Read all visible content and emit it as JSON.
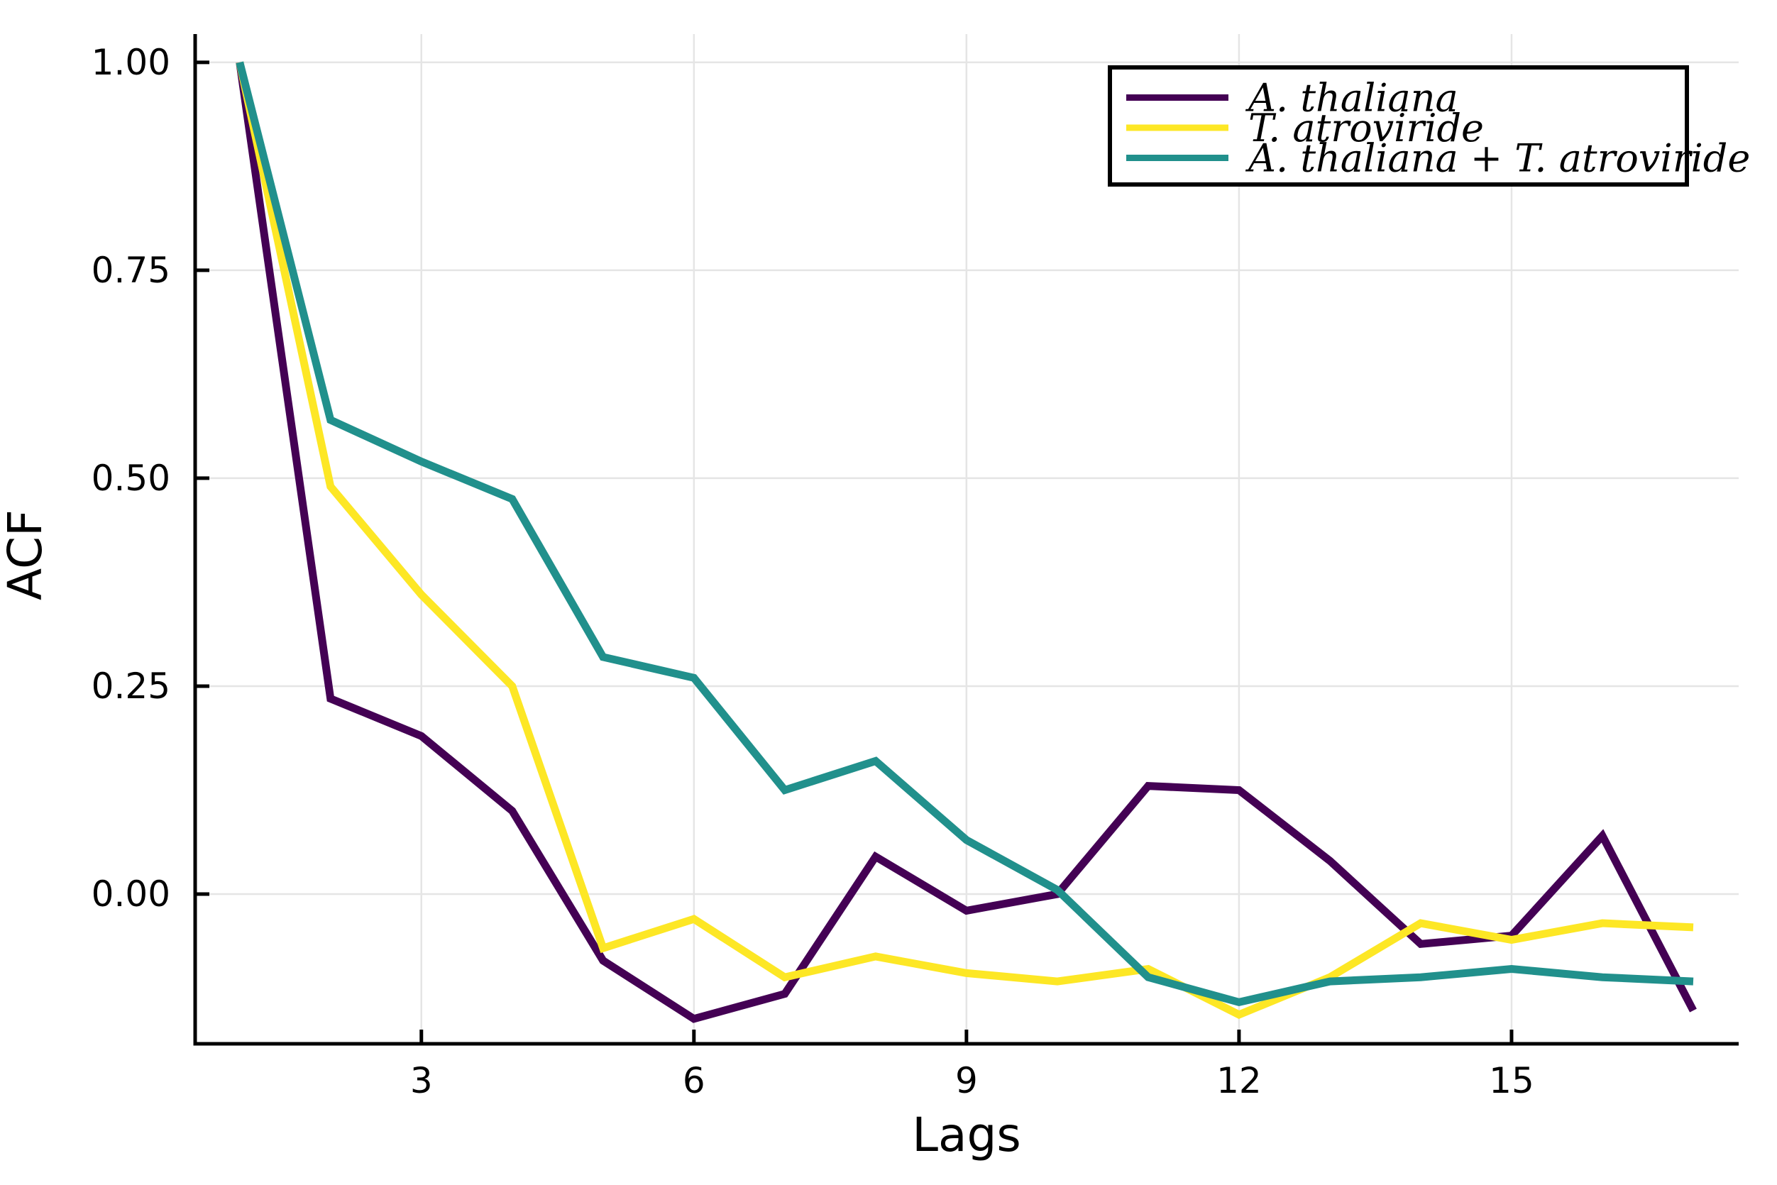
{
  "chart_data": {
    "type": "line",
    "title": "",
    "xlabel": "Lags",
    "ylabel": "ACF",
    "x": [
      1,
      2,
      3,
      4,
      5,
      6,
      7,
      8,
      9,
      10,
      11,
      12,
      13,
      14,
      15,
      16,
      17
    ],
    "xtick_values": [
      3,
      6,
      9,
      12,
      15
    ],
    "xtick_labels": [
      "3",
      "6",
      "9",
      "12",
      "15"
    ],
    "ytick_values": [
      0.0,
      0.25,
      0.5,
      0.75,
      1.0
    ],
    "ytick_labels": [
      "0.00",
      "0.25",
      "0.50",
      "0.75",
      "1.00"
    ],
    "xlim": [
      0.51,
      17.5
    ],
    "ylim": [
      -0.18,
      1.034
    ],
    "grid": true,
    "grid_color": "#e5e5e5",
    "axis_color": "#000000",
    "background_color": "#ffffff",
    "legend": {
      "position": "top-right",
      "border_color": "#000000",
      "fill_color": "#ffffff"
    },
    "series": [
      {
        "name": "A. thaliana",
        "color": "#440154",
        "values": [
          1.0,
          0.235,
          0.19,
          0.1,
          -0.08,
          -0.15,
          -0.12,
          0.045,
          -0.02,
          0.0,
          0.13,
          0.125,
          0.04,
          -0.06,
          -0.05,
          0.07,
          -0.14
        ]
      },
      {
        "name": "T. atroviride",
        "color": "#FDE725",
        "values": [
          1.0,
          0.49,
          0.36,
          0.25,
          -0.065,
          -0.03,
          -0.1,
          -0.075,
          -0.095,
          -0.105,
          -0.09,
          -0.145,
          -0.1,
          -0.035,
          -0.055,
          -0.035,
          -0.04
        ]
      },
      {
        "name": "A. thaliana + T. atroviride",
        "color": "#21908C",
        "values": [
          1.0,
          0.57,
          0.52,
          0.475,
          0.285,
          0.26,
          0.125,
          0.16,
          0.065,
          0.005,
          -0.1,
          -0.13,
          -0.105,
          -0.1,
          -0.09,
          -0.1,
          -0.105
        ]
      }
    ]
  }
}
